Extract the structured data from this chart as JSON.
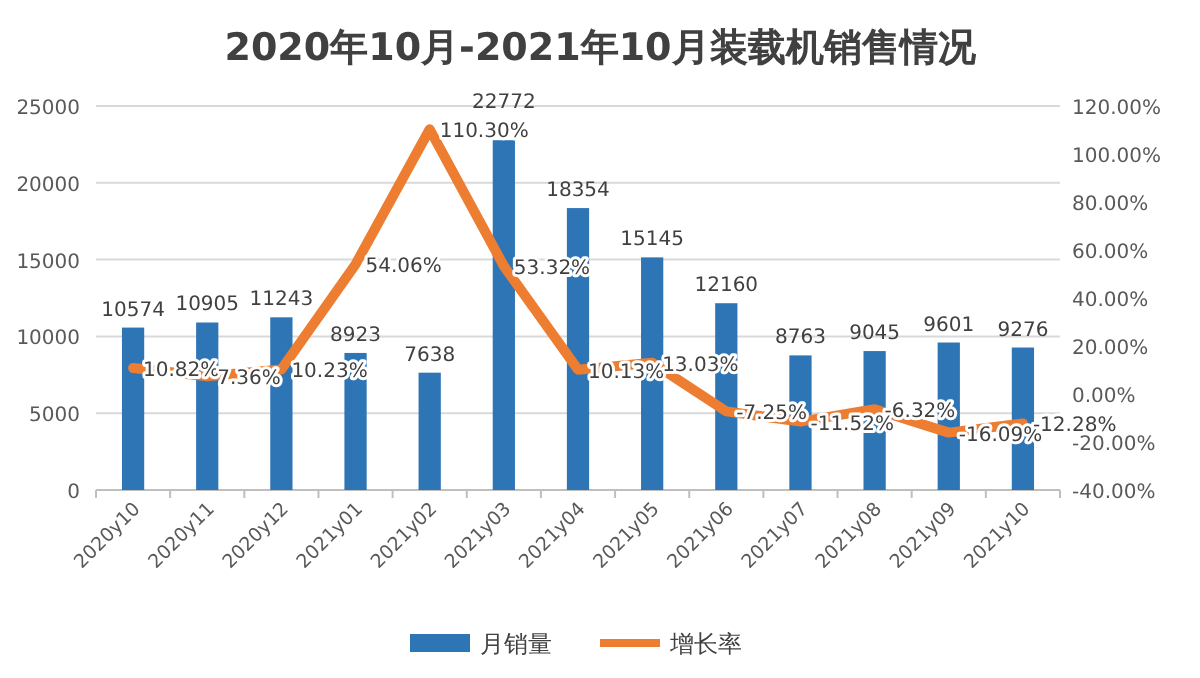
{
  "chart_data": {
    "type": "bar",
    "title": "2020年10月-2021年10月装载机销售情况",
    "categories": [
      "2020y10",
      "2020y11",
      "2020y12",
      "2021y01",
      "2021y02",
      "2021y03",
      "2021y04",
      "2021y05",
      "2021y06",
      "2021y07",
      "2021y08",
      "2021y09",
      "2021y10"
    ],
    "series": [
      {
        "name": "月销量",
        "color": "#2e75b6",
        "values": [
          10574,
          10905,
          11243,
          8923,
          7638,
          22772,
          18354,
          15145,
          12160,
          8763,
          9045,
          9601,
          9276
        ],
        "value_labels": [
          "10574",
          "10905",
          "11243",
          "8923",
          "7638",
          "22772",
          "18354",
          "15145",
          "12160",
          "8763",
          "9045",
          "9601",
          "9276"
        ]
      },
      {
        "name": "增长率",
        "type": "line",
        "axis": "y2",
        "color": "#ed7d31",
        "values": [
          10.82,
          7.36,
          10.23,
          54.06,
          110.3,
          53.32,
          10.13,
          13.03,
          -7.25,
          -11.52,
          -6.32,
          -16.09,
          -12.28
        ],
        "value_labels": [
          "10.82%",
          "7.36%",
          "10.23%",
          "54.06%",
          "110.30%",
          "53.32%",
          "10.13%",
          "13.03%",
          "-7.25%",
          "-11.52%",
          "-6.32%",
          "-16.09%",
          "-12.28%"
        ]
      }
    ],
    "ylim": [
      0,
      25000
    ],
    "yticks": [
      0,
      5000,
      10000,
      15000,
      20000,
      25000
    ],
    "y2lim": [
      -40,
      120
    ],
    "y2ticks": [
      {
        "value": -40,
        "label": "-40.00%"
      },
      {
        "value": -20,
        "label": "-20.00%"
      },
      {
        "value": 0,
        "label": "0.00%"
      },
      {
        "value": 20,
        "label": "20.00%"
      },
      {
        "value": 40,
        "label": "40.00%"
      },
      {
        "value": 60,
        "label": "60.00%"
      },
      {
        "value": 80,
        "label": "80.00%"
      },
      {
        "value": 100,
        "label": "100.00%"
      },
      {
        "value": 120,
        "label": "120.00%"
      }
    ],
    "grid": "y",
    "legend": "bottom",
    "marker": "none",
    "line_style": "solid"
  }
}
